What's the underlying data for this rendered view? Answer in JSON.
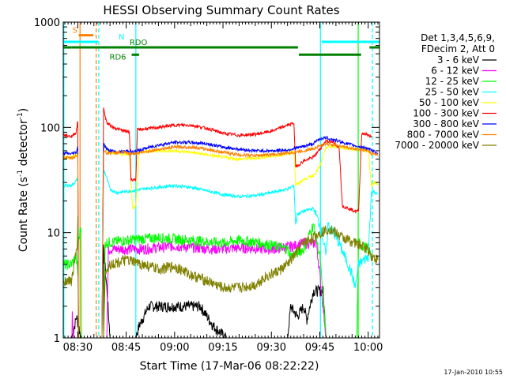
{
  "chart_data": {
    "type": "line",
    "title": "HESSI Observing Summary Count Rates",
    "xlabel": "Start Time (17-Mar-06 08:22:22)",
    "ylabel_main": "Count Rate (s",
    "ylabel_sup1": "-1",
    "ylabel_mid": " detector",
    "ylabel_sup2": "-1",
    "ylabel_end": ")",
    "yscale": "log",
    "ylim": [
      1,
      1000
    ],
    "xlim_min": [
      505.5,
      603.5
    ],
    "xticks": [
      {
        "v": 510,
        "label": "08:30"
      },
      {
        "v": 525,
        "label": "08:45"
      },
      {
        "v": 540,
        "label": "09:00"
      },
      {
        "v": 555,
        "label": "09:15"
      },
      {
        "v": 570,
        "label": "09:30"
      },
      {
        "v": 585,
        "label": "09:45"
      },
      {
        "v": 600,
        "label": "10:00"
      }
    ],
    "yticks": [
      {
        "v": 1,
        "label": "1"
      },
      {
        "v": 10,
        "label": "10"
      },
      {
        "v": 100,
        "label": "100"
      },
      {
        "v": 1000,
        "label": "1000"
      }
    ],
    "legend_header": [
      "Det 1,3,4,5,6,9,",
      "FDecim 2, Att 0"
    ],
    "series": [
      {
        "name": "3 - 6 keV",
        "color": "#000000",
        "points": [
          [
            508.2,
            1
          ],
          [
            509.6,
            1.6
          ],
          [
            511,
            1
          ],
          [
            518,
            1
          ],
          [
            518,
            7
          ],
          [
            519,
            3
          ],
          [
            520,
            1
          ],
          [
            528,
            1
          ],
          [
            529,
            1.3
          ],
          [
            532,
            2
          ],
          [
            540,
            2
          ],
          [
            548,
            2
          ],
          [
            552,
            1.3
          ],
          [
            556,
            1
          ],
          [
            575,
            1
          ],
          [
            576,
            2
          ],
          [
            578,
            1.6
          ],
          [
            580,
            2
          ],
          [
            581,
            1.5
          ],
          [
            583,
            2.8
          ],
          [
            586,
            2.8
          ],
          [
            587,
            1
          ],
          [
            603.5,
            1
          ]
        ]
      },
      {
        "name": "6 - 12 keV",
        "color": "#ff00ff",
        "points": [
          [
            505.5,
            1
          ],
          [
            508.2,
            1
          ],
          [
            508.3,
            2
          ],
          [
            508.6,
            1
          ],
          [
            519,
            1
          ],
          [
            519.5,
            7
          ],
          [
            530,
            7
          ],
          [
            540,
            7.5
          ],
          [
            552,
            7
          ],
          [
            560,
            7.2
          ],
          [
            570,
            7
          ],
          [
            577,
            7.5
          ],
          [
            580,
            8
          ],
          [
            584,
            8
          ],
          [
            587,
            1
          ],
          [
            603.5,
            1
          ]
        ]
      },
      {
        "name": "12 - 25 keV",
        "color": "#00ff00",
        "points": [
          [
            505.5,
            5
          ],
          [
            508,
            5
          ],
          [
            509.5,
            6
          ],
          [
            510,
            4
          ],
          [
            510.2,
            8
          ],
          [
            511,
            12
          ],
          [
            511.2,
            1
          ],
          [
            518,
            1
          ],
          [
            518.5,
            8
          ],
          [
            525,
            8.5
          ],
          [
            535,
            9
          ],
          [
            545,
            8.5
          ],
          [
            555,
            8
          ],
          [
            560,
            8.5
          ],
          [
            567,
            8
          ],
          [
            575,
            7
          ],
          [
            576,
            6
          ],
          [
            580,
            7
          ],
          [
            583,
            12
          ],
          [
            585,
            6
          ],
          [
            587,
            1
          ],
          [
            596.5,
            1
          ],
          [
            597,
            8
          ],
          [
            600,
            7
          ],
          [
            601,
            6
          ]
        ]
      },
      {
        "name": "25 - 50 keV",
        "color": "#00ffff",
        "points": [
          [
            505.5,
            28
          ],
          [
            508,
            28
          ],
          [
            509.5,
            31
          ],
          [
            510,
            33
          ],
          [
            510.2,
            1
          ],
          [
            517.5,
            1
          ],
          [
            518,
            40
          ],
          [
            519,
            33
          ],
          [
            520,
            26
          ],
          [
            522,
            24
          ],
          [
            527,
            25
          ],
          [
            530,
            26
          ],
          [
            535,
            27
          ],
          [
            540,
            28
          ],
          [
            545,
            27
          ],
          [
            550,
            25
          ],
          [
            555,
            23
          ],
          [
            560,
            22
          ],
          [
            565,
            22.5
          ],
          [
            570,
            24
          ],
          [
            575,
            26
          ],
          [
            577,
            28
          ],
          [
            577.5,
            12
          ],
          [
            578,
            15
          ],
          [
            580,
            16
          ],
          [
            583,
            17
          ],
          [
            585,
            12
          ],
          [
            587,
            6
          ],
          [
            587.5,
            12
          ],
          [
            591,
            8
          ],
          [
            595,
            4
          ],
          [
            596,
            3
          ],
          [
            597,
            5
          ],
          [
            600,
            6
          ],
          [
            601,
            25
          ],
          [
            602,
            24
          ],
          [
            603,
            23
          ]
        ]
      },
      {
        "name": "50 - 100 keV",
        "color": "#ffff00",
        "points": [
          [
            505.5,
            52
          ],
          [
            508,
            52
          ],
          [
            509.5,
            55
          ],
          [
            510,
            60
          ],
          [
            510.2,
            1
          ],
          [
            517.5,
            1
          ],
          [
            518,
            70
          ],
          [
            519,
            60
          ],
          [
            520,
            58
          ],
          [
            526,
            55
          ],
          [
            527,
            17
          ],
          [
            528,
            18
          ],
          [
            529,
            58
          ],
          [
            535,
            60
          ],
          [
            540,
            60
          ],
          [
            545,
            58
          ],
          [
            550,
            55
          ],
          [
            555,
            52
          ],
          [
            560,
            50
          ],
          [
            565,
            51
          ],
          [
            570,
            53
          ],
          [
            575,
            56
          ],
          [
            577,
            60
          ],
          [
            577.5,
            28
          ],
          [
            580,
            32
          ],
          [
            583,
            35
          ],
          [
            585,
            42
          ],
          [
            587,
            65
          ],
          [
            590,
            66
          ],
          [
            595,
            62
          ],
          [
            600,
            60
          ],
          [
            601,
            28
          ],
          [
            602,
            30
          ],
          [
            603,
            29
          ]
        ]
      },
      {
        "name": "100 - 300 keV",
        "color": "#ff0000",
        "points": [
          [
            505.5,
            85
          ],
          [
            508,
            82
          ],
          [
            509.5,
            90
          ],
          [
            510,
            115
          ],
          [
            510.2,
            1
          ],
          [
            517.5,
            1
          ],
          [
            518,
            150
          ],
          [
            519,
            110
          ],
          [
            521,
            100
          ],
          [
            524,
            93
          ],
          [
            526,
            90
          ],
          [
            526.5,
            32
          ],
          [
            528,
            32
          ],
          [
            528.5,
            95
          ],
          [
            535,
            100
          ],
          [
            540,
            105
          ],
          [
            545,
            105
          ],
          [
            550,
            98
          ],
          [
            555,
            88
          ],
          [
            560,
            84
          ],
          [
            565,
            86
          ],
          [
            570,
            92
          ],
          [
            575,
            105
          ],
          [
            577,
            110
          ],
          [
            577.5,
            42
          ],
          [
            580,
            48
          ],
          [
            583,
            52
          ],
          [
            585,
            62
          ],
          [
            587,
            75
          ],
          [
            589,
            72
          ],
          [
            591,
            65
          ],
          [
            592,
            18
          ],
          [
            596,
            16
          ],
          [
            597,
            16
          ],
          [
            598,
            88
          ],
          [
            600,
            85
          ],
          [
            601,
            80
          ]
        ]
      },
      {
        "name": "300 - 800 keV",
        "color": "#0000ff",
        "points": [
          [
            505.5,
            57
          ],
          [
            508,
            56
          ],
          [
            509.5,
            58
          ],
          [
            510,
            65
          ],
          [
            510.2,
            1
          ],
          [
            517.5,
            1
          ],
          [
            518,
            70
          ],
          [
            519,
            62
          ],
          [
            522,
            58
          ],
          [
            526,
            60
          ],
          [
            527,
            58
          ],
          [
            530,
            62
          ],
          [
            535,
            68
          ],
          [
            540,
            72
          ],
          [
            545,
            72
          ],
          [
            550,
            70
          ],
          [
            555,
            65
          ],
          [
            560,
            62
          ],
          [
            565,
            60
          ],
          [
            570,
            60
          ],
          [
            575,
            61
          ],
          [
            577,
            63
          ],
          [
            579,
            65
          ],
          [
            583,
            70
          ],
          [
            585,
            78
          ],
          [
            587,
            80
          ],
          [
            590,
            75
          ],
          [
            595,
            68
          ],
          [
            600,
            63
          ],
          [
            601,
            60
          ],
          [
            603,
            57
          ]
        ]
      },
      {
        "name": "800 - 7000 keV",
        "color": "#ff8000",
        "points": [
          [
            505.5,
            52
          ],
          [
            508,
            51
          ],
          [
            509.5,
            53
          ],
          [
            510,
            56
          ],
          [
            510.2,
            1
          ],
          [
            517.5,
            1
          ],
          [
            518,
            60
          ],
          [
            519,
            57
          ],
          [
            524,
            58
          ],
          [
            526,
            56
          ],
          [
            530,
            58
          ],
          [
            535,
            62
          ],
          [
            540,
            65
          ],
          [
            545,
            65
          ],
          [
            550,
            62
          ],
          [
            555,
            58
          ],
          [
            560,
            55
          ],
          [
            565,
            54
          ],
          [
            570,
            55
          ],
          [
            575,
            57
          ],
          [
            577,
            58
          ],
          [
            580,
            60
          ],
          [
            583,
            63
          ],
          [
            585,
            67
          ],
          [
            587,
            70
          ],
          [
            590,
            68
          ],
          [
            595,
            63
          ],
          [
            600,
            60
          ],
          [
            601,
            56
          ],
          [
            603,
            55
          ]
        ]
      },
      {
        "name": "7000 - 20000 keV",
        "color": "#808000",
        "points": [
          [
            505.5,
            3.5
          ],
          [
            508,
            3.5
          ],
          [
            509,
            5
          ],
          [
            509.8,
            8
          ],
          [
            510,
            13
          ],
          [
            510.2,
            1
          ],
          [
            518,
            1
          ],
          [
            518.5,
            4
          ],
          [
            520,
            5
          ],
          [
            525,
            5.5
          ],
          [
            530,
            5
          ],
          [
            535,
            4.5
          ],
          [
            540,
            4.8
          ],
          [
            545,
            4
          ],
          [
            550,
            3.5
          ],
          [
            555,
            3
          ],
          [
            560,
            3
          ],
          [
            565,
            3.2
          ],
          [
            568,
            3.8
          ],
          [
            570,
            4
          ],
          [
            573,
            4.5
          ],
          [
            575,
            5
          ],
          [
            577,
            6
          ],
          [
            580,
            8
          ],
          [
            583,
            9
          ],
          [
            585,
            10
          ],
          [
            588,
            11
          ],
          [
            592,
            9
          ],
          [
            596,
            8
          ],
          [
            600,
            7
          ],
          [
            601,
            6
          ],
          [
            603,
            5.5
          ]
        ]
      }
    ],
    "vlines": [
      {
        "x": 505.7,
        "color": "#00ffff",
        "dashed": false
      },
      {
        "x": 510.7,
        "color": "#ff8000",
        "dashed": false
      },
      {
        "x": 515.7,
        "color": "#ff8000",
        "dashed": true
      },
      {
        "x": 516.5,
        "color": "#00ffff",
        "dashed": true
      },
      {
        "x": 528,
        "color": "#00ffff",
        "dashed": false
      },
      {
        "x": 585.2,
        "color": "#00ffff",
        "dashed": false
      },
      {
        "x": 596.9,
        "color": "#00ff00",
        "dashed": false
      },
      {
        "x": 601.3,
        "color": "#00ffff",
        "dashed": true
      }
    ],
    "bars": [
      {
        "label": "S",
        "color": "#ff8000",
        "x0": 510.3,
        "x1": 514.8,
        "y": 750
      },
      {
        "label": "N",
        "color": "#00ffff",
        "x0": 505.5,
        "x1": 516.3,
        "y": 650
      },
      {
        "label": "",
        "color": "#00ffff",
        "x0": 585.6,
        "x1": 603.5,
        "y": 650
      },
      {
        "label": "",
        "color": "#008000",
        "x0": 505.5,
        "x1": 508,
        "y": 575
      },
      {
        "label": "",
        "color": "#008000",
        "x0": 508,
        "x1": 578.2,
        "y": 575
      },
      {
        "label": "RDO",
        "color": "#008000",
        "x0": 528,
        "x1": 578.2,
        "y": 575
      },
      {
        "label": "RD6",
        "color": "#008000",
        "x0": 526.7,
        "x1": 529,
        "y": 490
      },
      {
        "label": "",
        "color": "#008000",
        "x0": 578.5,
        "x1": 597.8,
        "y": 490
      },
      {
        "label": "",
        "color": "#008000",
        "x0": 600.4,
        "x1": 603.5,
        "y": 575
      }
    ]
  },
  "footer_date": "17-Jan-2010 10:55"
}
